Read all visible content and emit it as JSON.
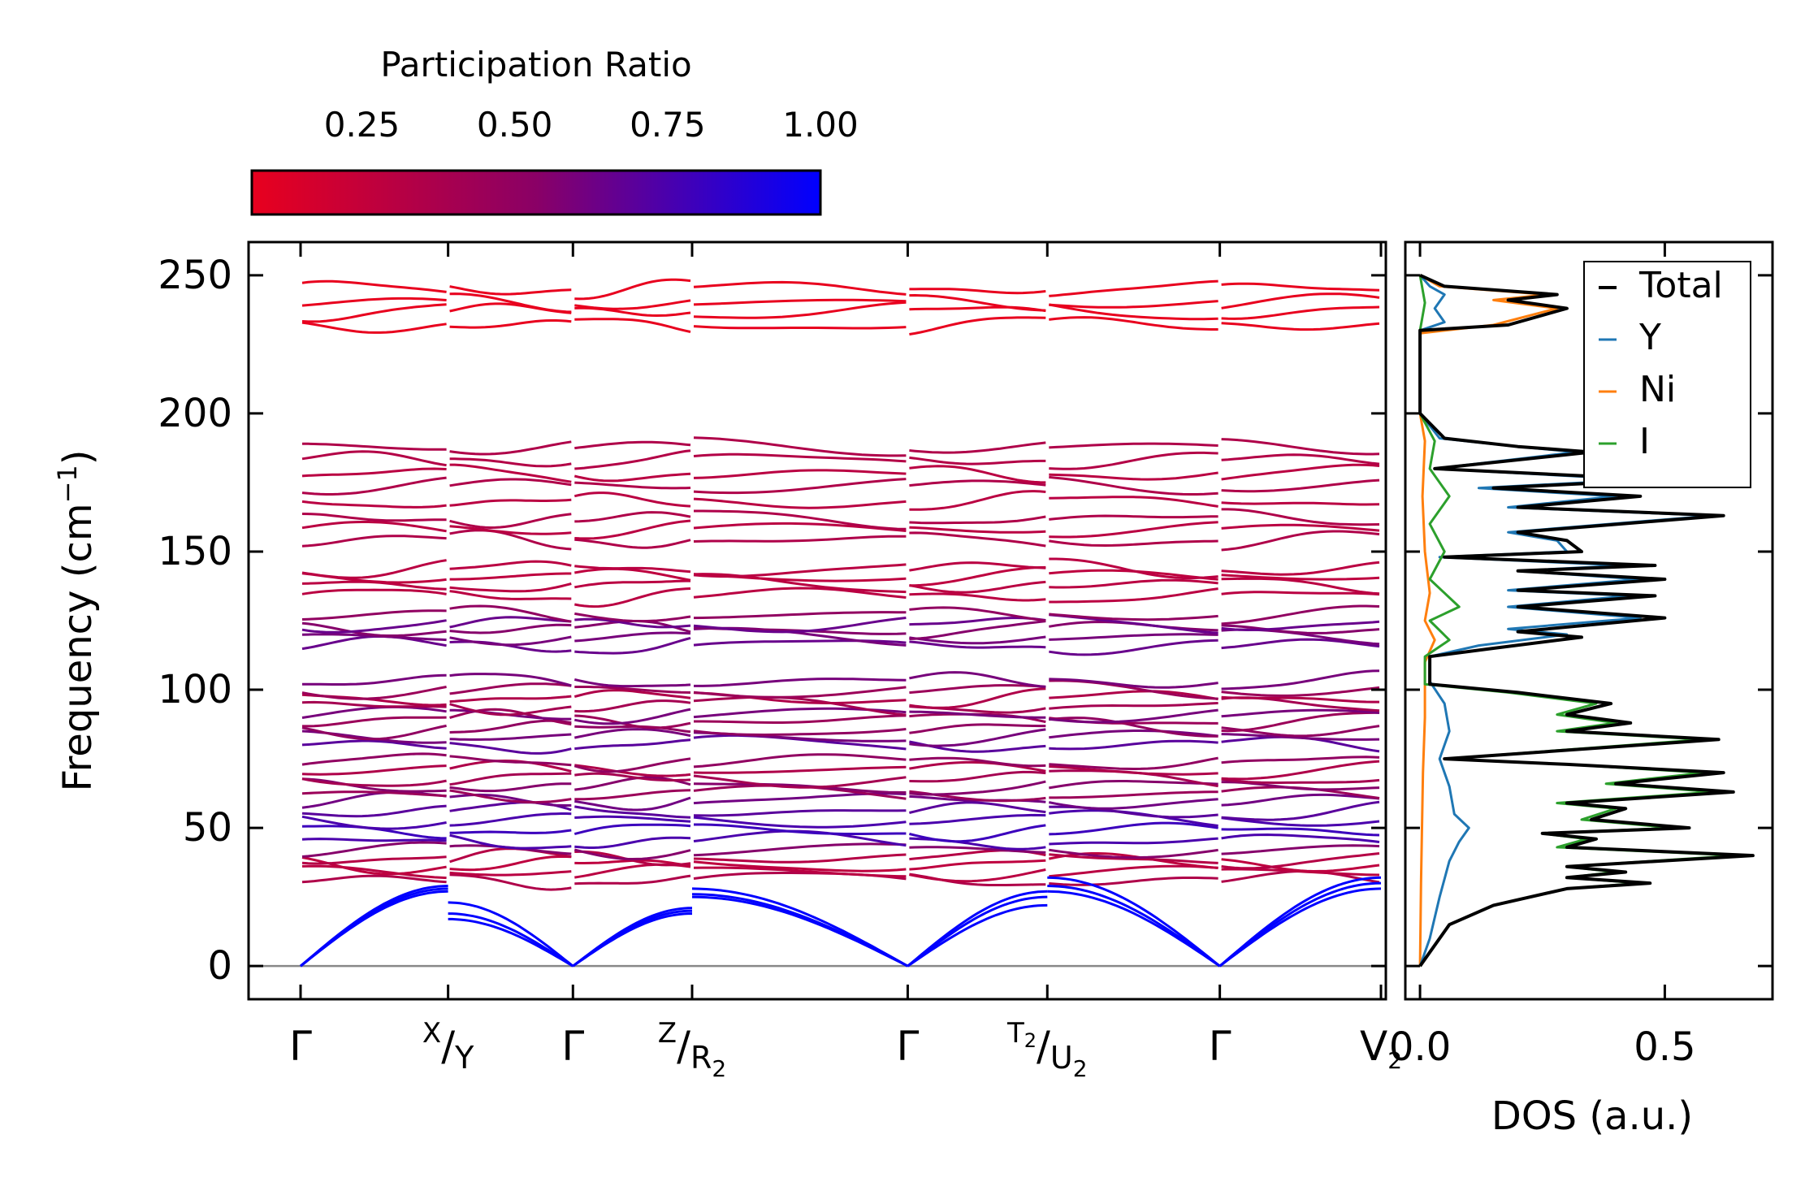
{
  "chart_data": [
    {
      "type": "line",
      "subtype": "phonon-dispersion",
      "ylabel": "Frequency (cm",
      "ylabel_sup": "−1",
      "ylabel_close": ")",
      "ylim": [
        -12,
        262
      ],
      "yticks": [
        0,
        50,
        100,
        150,
        200,
        250
      ],
      "kpath": [
        {
          "label": "Γ",
          "pos": 0.0
        },
        {
          "label_sup": "X",
          "sep": "/",
          "label_main": "Y",
          "pos": 0.13
        },
        {
          "label": "Γ",
          "pos": 0.24
        },
        {
          "label_sup": "Z",
          "sep": "/",
          "label_main": "R",
          "label_sub": "2",
          "pos": 0.345
        },
        {
          "label": "Γ",
          "pos": 0.535
        },
        {
          "label_sup": "T",
          "label_sup_sub": "2",
          "sep": "/",
          "label_main": "U",
          "label_sub": "2",
          "pos": 0.658
        },
        {
          "label": "Γ",
          "pos": 0.81
        },
        {
          "label_main": "V",
          "label_sub": "2",
          "pos": 0.952
        }
      ],
      "segments": [
        [
          0,
          0.13
        ],
        [
          0.13,
          0.24
        ],
        [
          0.24,
          0.345
        ],
        [
          0.345,
          0.535
        ],
        [
          0.535,
          0.658
        ],
        [
          0.658,
          0.81
        ],
        [
          0.81,
          0.952
        ]
      ],
      "acoustic_branches": [
        {
          "segment": 0,
          "start": 0,
          "end": [
            27,
            28,
            29
          ],
          "participation": 1.0
        },
        {
          "segment": 1,
          "start": [
            23,
            19,
            17
          ],
          "end": 0,
          "participation": 1.0
        },
        {
          "segment": 2,
          "start": 0,
          "end": [
            21,
            20,
            19
          ],
          "participation": 1.0
        },
        {
          "segment": 3,
          "start": [
            28,
            26,
            25
          ],
          "end": 0,
          "participation": 1.0
        },
        {
          "segment": 4,
          "start": 0,
          "end": [
            27,
            25,
            22
          ],
          "participation": 1.0
        },
        {
          "segment": 5,
          "start": [
            32,
            29,
            27
          ],
          "end": 0,
          "participation": 1.0
        },
        {
          "segment": 6,
          "start": 0,
          "end": [
            32,
            30,
            28
          ],
          "participation": 1.0
        }
      ],
      "optical_bands": [
        {
          "freq": 31,
          "p": 0.35
        },
        {
          "freq": 34,
          "p": 0.3
        },
        {
          "freq": 37,
          "p": 0.28
        },
        {
          "freq": 39,
          "p": 0.32
        },
        {
          "freq": 42,
          "p": 0.55
        },
        {
          "freq": 45,
          "p": 0.75
        },
        {
          "freq": 49,
          "p": 0.8
        },
        {
          "freq": 53,
          "p": 0.75
        },
        {
          "freq": 56,
          "p": 0.7
        },
        {
          "freq": 60,
          "p": 0.62
        },
        {
          "freq": 62,
          "p": 0.45
        },
        {
          "freq": 65,
          "p": 0.55
        },
        {
          "freq": 68,
          "p": 0.4
        },
        {
          "freq": 71,
          "p": 0.35
        },
        {
          "freq": 74,
          "p": 0.5
        },
        {
          "freq": 80,
          "p": 0.7
        },
        {
          "freq": 83,
          "p": 0.6
        },
        {
          "freq": 86,
          "p": 0.5
        },
        {
          "freq": 89,
          "p": 0.45
        },
        {
          "freq": 91,
          "p": 0.6
        },
        {
          "freq": 94,
          "p": 0.4
        },
        {
          "freq": 97,
          "p": 0.35
        },
        {
          "freq": 100,
          "p": 0.45
        },
        {
          "freq": 103,
          "p": 0.6
        },
        {
          "freq": 116,
          "p": 0.65
        },
        {
          "freq": 119,
          "p": 0.6
        },
        {
          "freq": 122,
          "p": 0.55
        },
        {
          "freq": 124,
          "p": 0.65
        },
        {
          "freq": 127,
          "p": 0.5
        },
        {
          "freq": 134,
          "p": 0.3
        },
        {
          "freq": 138,
          "p": 0.3
        },
        {
          "freq": 141,
          "p": 0.28
        },
        {
          "freq": 144,
          "p": 0.3
        },
        {
          "freq": 154,
          "p": 0.35
        },
        {
          "freq": 158,
          "p": 0.3
        },
        {
          "freq": 162,
          "p": 0.35
        },
        {
          "freq": 168,
          "p": 0.3
        },
        {
          "freq": 174,
          "p": 0.35
        },
        {
          "freq": 178,
          "p": 0.3
        },
        {
          "freq": 183,
          "p": 0.33
        },
        {
          "freq": 188,
          "p": 0.35
        },
        {
          "freq": 232,
          "p": 0.05
        },
        {
          "freq": 237,
          "p": 0.05
        },
        {
          "freq": 240,
          "p": 0.05
        },
        {
          "freq": 245,
          "p": 0.05
        }
      ],
      "colorbar": {
        "label": "Participation Ratio",
        "ticks": [
          "0.25",
          "0.50",
          "0.75",
          "1.00"
        ],
        "tick_values": [
          0.25,
          0.5,
          0.75,
          1.0
        ],
        "range": [
          0.07,
          1.0
        ],
        "color_low": "#e8001e",
        "color_mid": "#8a0066",
        "color_high": "#0000ff"
      }
    },
    {
      "type": "line",
      "subtype": "density-of-states",
      "xlabel": "DOS (a.u.)",
      "xticks": [
        "0.0",
        "0.5"
      ],
      "xtick_values": [
        0.0,
        0.5
      ],
      "xlim": [
        -0.03,
        0.72
      ],
      "ylim": [
        -12,
        262
      ],
      "series": [
        {
          "name": "Total",
          "color": "#000000",
          "points": [
            [
              0,
              0
            ],
            [
              0.02,
              5
            ],
            [
              0.06,
              15
            ],
            [
              0.15,
              22
            ],
            [
              0.3,
              28
            ],
            [
              0.47,
              30
            ],
            [
              0.3,
              32
            ],
            [
              0.42,
              34
            ],
            [
              0.3,
              36
            ],
            [
              0.68,
              40
            ],
            [
              0.3,
              43
            ],
            [
              0.36,
              46
            ],
            [
              0.25,
              48
            ],
            [
              0.55,
              50
            ],
            [
              0.35,
              53
            ],
            [
              0.42,
              57
            ],
            [
              0.3,
              59
            ],
            [
              0.64,
              63
            ],
            [
              0.4,
              66
            ],
            [
              0.62,
              70
            ],
            [
              0.3,
              73
            ],
            [
              0.05,
              75
            ],
            [
              0.61,
              82
            ],
            [
              0.3,
              85
            ],
            [
              0.43,
              88
            ],
            [
              0.3,
              91
            ],
            [
              0.39,
              95
            ],
            [
              0.2,
              99
            ],
            [
              0.02,
              102
            ],
            [
              0.02,
              112
            ],
            [
              0.15,
              115
            ],
            [
              0.33,
              119
            ],
            [
              0.2,
              121
            ],
            [
              0.5,
              126
            ],
            [
              0.2,
              130
            ],
            [
              0.48,
              134
            ],
            [
              0.2,
              136
            ],
            [
              0.5,
              140
            ],
            [
              0.2,
              143
            ],
            [
              0.48,
              145
            ],
            [
              0.05,
              148
            ],
            [
              0.33,
              150
            ],
            [
              0.3,
              154
            ],
            [
              0.2,
              157
            ],
            [
              0.62,
              163
            ],
            [
              0.2,
              166
            ],
            [
              0.45,
              170
            ],
            [
              0.15,
              173
            ],
            [
              0.5,
              176
            ],
            [
              0.03,
              180
            ],
            [
              0.35,
              186
            ],
            [
              0.2,
              188
            ],
            [
              0.05,
              191
            ],
            [
              0.0,
              200
            ],
            [
              0.0,
              230
            ],
            [
              0.18,
              232
            ],
            [
              0.3,
              238
            ],
            [
              0.18,
              241
            ],
            [
              0.28,
              243
            ],
            [
              0.05,
              246
            ],
            [
              0.0,
              250
            ]
          ]
        },
        {
          "name": "Y",
          "color": "#1f77b4",
          "points": [
            [
              0,
              0
            ],
            [
              0.02,
              10
            ],
            [
              0.04,
              25
            ],
            [
              0.06,
              38
            ],
            [
              0.08,
              45
            ],
            [
              0.1,
              50
            ],
            [
              0.07,
              55
            ],
            [
              0.06,
              65
            ],
            [
              0.04,
              75
            ],
            [
              0.06,
              85
            ],
            [
              0.05,
              95
            ],
            [
              0.02,
              103
            ],
            [
              0.02,
              112
            ],
            [
              0.12,
              116
            ],
            [
              0.3,
              120
            ],
            [
              0.18,
              122
            ],
            [
              0.45,
              126
            ],
            [
              0.18,
              130
            ],
            [
              0.43,
              134
            ],
            [
              0.18,
              136
            ],
            [
              0.45,
              140
            ],
            [
              0.2,
              143
            ],
            [
              0.42,
              145
            ],
            [
              0.04,
              148
            ],
            [
              0.3,
              150
            ],
            [
              0.28,
              154
            ],
            [
              0.18,
              157
            ],
            [
              0.6,
              163
            ],
            [
              0.18,
              166
            ],
            [
              0.4,
              170
            ],
            [
              0.12,
              173
            ],
            [
              0.45,
              176
            ],
            [
              0.03,
              180
            ],
            [
              0.32,
              186
            ],
            [
              0.2,
              188
            ],
            [
              0.04,
              191
            ],
            [
              0.0,
              200
            ],
            [
              0.0,
              230
            ],
            [
              0.05,
              233
            ],
            [
              0.03,
              238
            ],
            [
              0.05,
              243
            ],
            [
              0.02,
              246
            ],
            [
              0.0,
              250
            ]
          ]
        },
        {
          "name": "Ni",
          "color": "#ff7f0e",
          "points": [
            [
              0,
              0
            ],
            [
              0.002,
              30
            ],
            [
              0.004,
              50
            ],
            [
              0.006,
              70
            ],
            [
              0.01,
              90
            ],
            [
              0.01,
              110
            ],
            [
              0.03,
              118
            ],
            [
              0.01,
              125
            ],
            [
              0.02,
              135
            ],
            [
              0.01,
              150
            ],
            [
              0.005,
              170
            ],
            [
              0.01,
              190
            ],
            [
              0.0,
              200
            ],
            [
              0.0,
              229
            ],
            [
              0.15,
              232
            ],
            [
              0.28,
              238
            ],
            [
              0.15,
              241
            ],
            [
              0.26,
              243
            ],
            [
              0.04,
              246
            ],
            [
              0.0,
              250
            ]
          ]
        },
        {
          "name": "I",
          "color": "#2ca02c",
          "points": [
            [
              0,
              0
            ],
            [
              0.02,
              5
            ],
            [
              0.06,
              15
            ],
            [
              0.15,
              22
            ],
            [
              0.3,
              28
            ],
            [
              0.45,
              30
            ],
            [
              0.3,
              32
            ],
            [
              0.4,
              34
            ],
            [
              0.3,
              36
            ],
            [
              0.65,
              40
            ],
            [
              0.28,
              43
            ],
            [
              0.34,
              46
            ],
            [
              0.25,
              48
            ],
            [
              0.52,
              50
            ],
            [
              0.33,
              53
            ],
            [
              0.4,
              57
            ],
            [
              0.28,
              59
            ],
            [
              0.6,
              63
            ],
            [
              0.38,
              66
            ],
            [
              0.58,
              70
            ],
            [
              0.3,
              73
            ],
            [
              0.05,
              75
            ],
            [
              0.58,
              82
            ],
            [
              0.28,
              85
            ],
            [
              0.4,
              88
            ],
            [
              0.28,
              91
            ],
            [
              0.36,
              95
            ],
            [
              0.18,
              99
            ],
            [
              0.01,
              102
            ],
            [
              0.01,
              112
            ],
            [
              0.06,
              118
            ],
            [
              0.02,
              125
            ],
            [
              0.08,
              130
            ],
            [
              0.02,
              140
            ],
            [
              0.05,
              150
            ],
            [
              0.02,
              160
            ],
            [
              0.06,
              170
            ],
            [
              0.02,
              180
            ],
            [
              0.03,
              190
            ],
            [
              0.0,
              200
            ],
            [
              0.0,
              230
            ],
            [
              0.01,
              240
            ],
            [
              0.0,
              250
            ]
          ]
        }
      ],
      "legend": {
        "placement": "top-right",
        "entries": [
          "Total",
          "Y",
          "Ni",
          "I"
        ]
      }
    }
  ]
}
